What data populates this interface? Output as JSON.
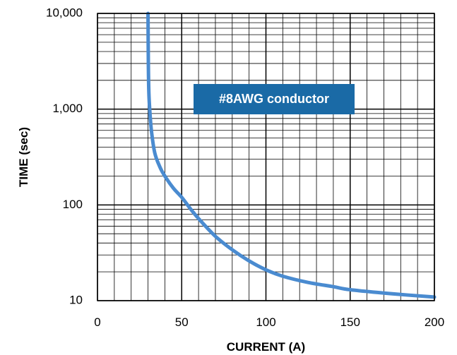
{
  "chart_data": {
    "type": "line",
    "xlabel": "CURRENT (A)",
    "ylabel": "TIME (sec)",
    "x_scale": "linear",
    "y_scale": "log",
    "xlim": [
      0,
      200
    ],
    "ylim": [
      10,
      10000
    ],
    "x_ticks": [
      0,
      50,
      100,
      150,
      200
    ],
    "x_tick_labels": [
      "0",
      "50",
      "100",
      "150",
      "200"
    ],
    "y_ticks": [
      10,
      100,
      1000,
      10000
    ],
    "y_tick_labels": [
      "10",
      "100",
      "1,000",
      "10,000"
    ],
    "grid": true,
    "annotation": "#8AWG conductor",
    "series": [
      {
        "color": "#4a8bd0",
        "points": [
          {
            "x": 30,
            "y": 10000
          },
          {
            "x": 30.2,
            "y": 3000
          },
          {
            "x": 30.5,
            "y": 1500
          },
          {
            "x": 31,
            "y": 1000
          },
          {
            "x": 32,
            "y": 600
          },
          {
            "x": 34,
            "y": 350
          },
          {
            "x": 37,
            "y": 250
          },
          {
            "x": 40,
            "y": 200
          },
          {
            "x": 45,
            "y": 150
          },
          {
            "x": 50,
            "y": 120
          },
          {
            "x": 55,
            "y": 92
          },
          {
            "x": 60,
            "y": 72
          },
          {
            "x": 70,
            "y": 47
          },
          {
            "x": 80,
            "y": 34
          },
          {
            "x": 90,
            "y": 26
          },
          {
            "x": 100,
            "y": 21
          },
          {
            "x": 110,
            "y": 18
          },
          {
            "x": 125,
            "y": 15.5
          },
          {
            "x": 140,
            "y": 14
          },
          {
            "x": 150,
            "y": 13
          },
          {
            "x": 175,
            "y": 11.8
          },
          {
            "x": 200,
            "y": 10.9
          }
        ]
      }
    ],
    "colors": {
      "curve": "#4a8bd0",
      "annotation_bg": "#1a6aa6",
      "annotation_text": "#ffffff",
      "grid": "#000000"
    }
  }
}
